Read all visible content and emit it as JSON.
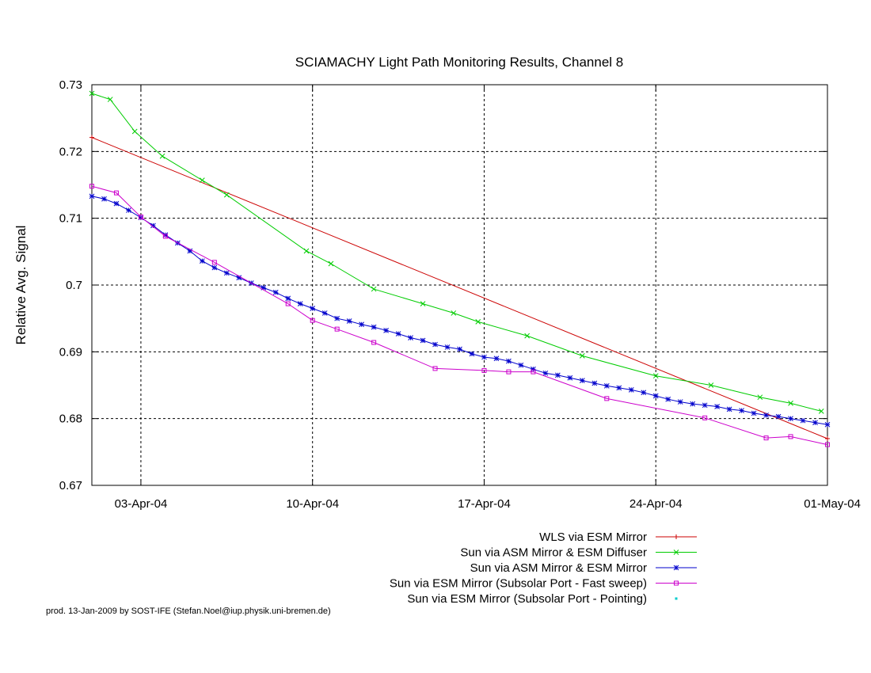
{
  "chart_data": {
    "type": "line",
    "title": "SCIAMACHY Light Path Monitoring Results, Channel 8",
    "xlabel": "",
    "ylabel": "Relative Avg. Signal",
    "xlim": [
      "2004-04-01",
      "2004-05-01"
    ],
    "ylim": [
      0.67,
      0.73
    ],
    "x_ticks": [
      {
        "date": "2004-04-03",
        "label": "03-Apr-04"
      },
      {
        "date": "2004-04-10",
        "label": "10-Apr-04"
      },
      {
        "date": "2004-04-17",
        "label": "17-Apr-04"
      },
      {
        "date": "2004-04-24",
        "label": "24-Apr-04"
      },
      {
        "date": "2004-05-01",
        "label": "01-May-04"
      }
    ],
    "y_ticks": [
      {
        "value": 0.67,
        "label": "0.67"
      },
      {
        "value": 0.68,
        "label": "0.68"
      },
      {
        "value": 0.69,
        "label": "0.69"
      },
      {
        "value": 0.7,
        "label": "0.7"
      },
      {
        "value": 0.71,
        "label": "0.71"
      },
      {
        "value": 0.72,
        "label": "0.72"
      },
      {
        "value": 0.73,
        "label": "0.73"
      }
    ],
    "grid": true,
    "legend_position": "bottom-right, below plot",
    "series": [
      {
        "name": "WLS via ESM Mirror",
        "color": "#cc0000",
        "marker": "plus",
        "points": [
          [
            "2004-04-01",
            0.7221
          ],
          [
            "2004-05-01",
            0.677
          ]
        ]
      },
      {
        "name": "Sun via ASM Mirror & ESM Diffuser",
        "color": "#00cc00",
        "marker": "cross",
        "points": [
          [
            "2004-04-01",
            0.7287
          ],
          [
            "2004-04-01 18:00",
            0.7278
          ],
          [
            "2004-04-02 18:00",
            0.723
          ],
          [
            "2004-04-03 21:00",
            0.7193
          ],
          [
            "2004-04-05 12:00",
            0.7157
          ],
          [
            "2004-04-06 12:00",
            0.7135
          ],
          [
            "2004-04-09 18:00",
            0.7051
          ],
          [
            "2004-04-10 18:00",
            0.7032
          ],
          [
            "2004-04-12 12:00",
            0.6994
          ],
          [
            "2004-04-14 12:00",
            0.6972
          ],
          [
            "2004-04-15 18:00",
            0.6958
          ],
          [
            "2004-04-16 18:00",
            0.6945
          ],
          [
            "2004-04-18 18:00",
            0.6924
          ],
          [
            "2004-04-21",
            0.6894
          ],
          [
            "2004-04-24",
            0.6864
          ],
          [
            "2004-04-26 06:00",
            0.685
          ],
          [
            "2004-04-28 06:00",
            0.6832
          ],
          [
            "2004-04-29 12:00",
            0.6823
          ],
          [
            "2004-04-30 18:00",
            0.6811
          ]
        ]
      },
      {
        "name": "Sun via ASM Mirror & ESM Mirror",
        "color": "#0000cc",
        "marker": "star",
        "points": [
          [
            "2004-04-01",
            0.7133
          ],
          [
            "2004-04-01 12:00",
            0.7129
          ],
          [
            "2004-04-02",
            0.7122
          ],
          [
            "2004-04-02 12:00",
            0.7112
          ],
          [
            "2004-04-03",
            0.7101
          ],
          [
            "2004-04-03 12:00",
            0.7089
          ],
          [
            "2004-04-04",
            0.7075
          ],
          [
            "2004-04-04 12:00",
            0.7063
          ],
          [
            "2004-04-05",
            0.7051
          ],
          [
            "2004-04-05 12:00",
            0.7036
          ],
          [
            "2004-04-06",
            0.7026
          ],
          [
            "2004-04-06 12:00",
            0.7018
          ],
          [
            "2004-04-07",
            0.7011
          ],
          [
            "2004-04-07 12:00",
            0.7003
          ],
          [
            "2004-04-08",
            0.6996
          ],
          [
            "2004-04-08 12:00",
            0.6989
          ],
          [
            "2004-04-09",
            0.698
          ],
          [
            "2004-04-09 12:00",
            0.6972
          ],
          [
            "2004-04-10",
            0.6965
          ],
          [
            "2004-04-10 12:00",
            0.6958
          ],
          [
            "2004-04-11",
            0.695
          ],
          [
            "2004-04-11 12:00",
            0.6946
          ],
          [
            "2004-04-12",
            0.6941
          ],
          [
            "2004-04-12 12:00",
            0.6937
          ],
          [
            "2004-04-13",
            0.6932
          ],
          [
            "2004-04-13 12:00",
            0.6927
          ],
          [
            "2004-04-14",
            0.6921
          ],
          [
            "2004-04-14 12:00",
            0.6917
          ],
          [
            "2004-04-15",
            0.6911
          ],
          [
            "2004-04-15 12:00",
            0.6907
          ],
          [
            "2004-04-16",
            0.6904
          ],
          [
            "2004-04-16 12:00",
            0.6897
          ],
          [
            "2004-04-17",
            0.6892
          ],
          [
            "2004-04-17 12:00",
            0.689
          ],
          [
            "2004-04-18",
            0.6886
          ],
          [
            "2004-04-18 12:00",
            0.688
          ],
          [
            "2004-04-19",
            0.6874
          ],
          [
            "2004-04-19 12:00",
            0.6868
          ],
          [
            "2004-04-20",
            0.6865
          ],
          [
            "2004-04-20 12:00",
            0.6861
          ],
          [
            "2004-04-21",
            0.6857
          ],
          [
            "2004-04-21 12:00",
            0.6853
          ],
          [
            "2004-04-22",
            0.6849
          ],
          [
            "2004-04-22 12:00",
            0.6846
          ],
          [
            "2004-04-23",
            0.6843
          ],
          [
            "2004-04-23 12:00",
            0.6839
          ],
          [
            "2004-04-24",
            0.6834
          ],
          [
            "2004-04-24 12:00",
            0.6829
          ],
          [
            "2004-04-25",
            0.6825
          ],
          [
            "2004-04-25 12:00",
            0.6822
          ],
          [
            "2004-04-26",
            0.682
          ],
          [
            "2004-04-26 12:00",
            0.6818
          ],
          [
            "2004-04-27",
            0.6814
          ],
          [
            "2004-04-27 12:00",
            0.6812
          ],
          [
            "2004-04-28",
            0.6808
          ],
          [
            "2004-04-28 12:00",
            0.6805
          ],
          [
            "2004-04-29",
            0.6803
          ],
          [
            "2004-04-29 12:00",
            0.68
          ],
          [
            "2004-04-30",
            0.6797
          ],
          [
            "2004-04-30 12:00",
            0.6794
          ],
          [
            "2004-05-01",
            0.6791
          ]
        ]
      },
      {
        "name": "Sun via ESM Mirror (Subsolar Port - Fast sweep)",
        "color": "#cc00cc",
        "marker": "square",
        "points": [
          [
            "2004-04-01",
            0.7148
          ],
          [
            "2004-04-02",
            0.7138
          ],
          [
            "2004-04-03",
            0.7102
          ],
          [
            "2004-04-04",
            0.7073
          ],
          [
            "2004-04-06",
            0.7034
          ],
          [
            "2004-04-09",
            0.6972
          ],
          [
            "2004-04-10",
            0.6947
          ],
          [
            "2004-04-11",
            0.6934
          ],
          [
            "2004-04-12 12:00",
            0.6914
          ],
          [
            "2004-04-15",
            0.6875
          ],
          [
            "2004-04-17",
            0.6872
          ],
          [
            "2004-04-18",
            0.687
          ],
          [
            "2004-04-19",
            0.687
          ],
          [
            "2004-04-22",
            0.683
          ],
          [
            "2004-04-26",
            0.6801
          ],
          [
            "2004-04-28 12:00",
            0.6771
          ],
          [
            "2004-04-29 12:00",
            0.6773
          ],
          [
            "2004-05-01",
            0.6761
          ]
        ]
      },
      {
        "name": "Sun via ESM Mirror (Subsolar Port - Pointing)",
        "color": "#00cccc",
        "marker": "dot",
        "points": []
      }
    ]
  },
  "footer": {
    "credit": "prod. 13-Jan-2009 by SOST-IFE (Stefan.Noel@iup.physik.uni-bremen.de)"
  }
}
